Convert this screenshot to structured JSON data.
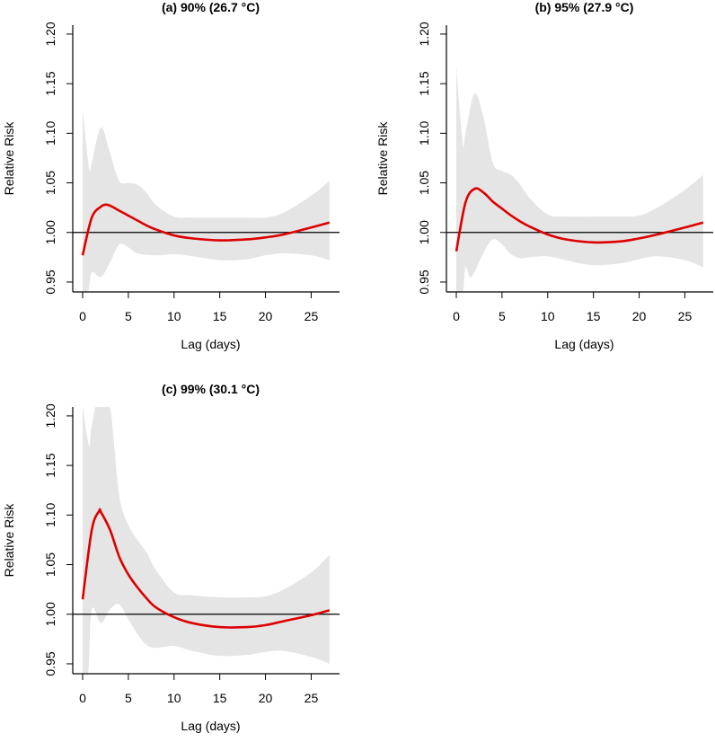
{
  "chart_data": [
    {
      "type": "line",
      "title": "(a) 90% (26.7 °C)",
      "xlabel": "Lag (days)",
      "ylabel": "Relative Risk",
      "xlim": [
        -1.08,
        28.1
      ],
      "ylim": [
        0.94,
        1.209
      ],
      "xticks": [
        "0",
        "5",
        "10",
        "15",
        "20",
        "25"
      ],
      "yticks": [
        "0.95",
        "1.00",
        "1.05",
        "1.10",
        "1.15",
        "1.20"
      ],
      "reference_line": 1.0,
      "colors": {
        "estimate": "#dd0000",
        "ci": "#e5e5e5",
        "reference": "#000000"
      },
      "series": [
        {
          "name": "estimate",
          "x": [
            0,
            1,
            2,
            2.5,
            3,
            4,
            5,
            6,
            7,
            8,
            10,
            12,
            15,
            18,
            20,
            22,
            25,
            27
          ],
          "y": [
            0.977,
            1.015,
            1.026,
            1.028,
            1.027,
            1.022,
            1.017,
            1.012,
            1.007,
            1.003,
            0.997,
            0.994,
            0.992,
            0.993,
            0.995,
            0.998,
            1.005,
            1.01
          ]
        },
        {
          "name": "upper_ci",
          "x": [
            0,
            0.7,
            1,
            2,
            3,
            4,
            5,
            6,
            7,
            8,
            10,
            12,
            15,
            18,
            20,
            22,
            25,
            27
          ],
          "y": [
            1.125,
            1.065,
            1.07,
            1.106,
            1.08,
            1.052,
            1.05,
            1.048,
            1.04,
            1.028,
            1.016,
            1.015,
            1.015,
            1.015,
            1.015,
            1.02,
            1.037,
            1.052
          ]
        },
        {
          "name": "lower_ci",
          "x": [
            0,
            0.6,
            1,
            2,
            3,
            4,
            5,
            6,
            8,
            10,
            12,
            15,
            18,
            20,
            22,
            25,
            27
          ],
          "y": [
            0.94,
            0.94,
            0.96,
            0.955,
            0.97,
            0.988,
            0.985,
            0.979,
            0.977,
            0.978,
            0.976,
            0.972,
            0.973,
            0.977,
            0.979,
            0.977,
            0.972
          ]
        }
      ]
    },
    {
      "type": "line",
      "title": "(b)  95% (27.9 °C)",
      "xlabel": "Lag (days)",
      "ylabel": "Relative Risk",
      "xlim": [
        -1.08,
        28.1
      ],
      "ylim": [
        0.94,
        1.209
      ],
      "xticks": [
        "0",
        "5",
        "10",
        "15",
        "20",
        "25"
      ],
      "yticks": [
        "0.95",
        "1.00",
        "1.05",
        "1.10",
        "1.15",
        "1.20"
      ],
      "reference_line": 1.0,
      "colors": {
        "estimate": "#dd0000",
        "ci": "#e5e5e5",
        "reference": "#000000"
      },
      "series": [
        {
          "name": "estimate",
          "x": [
            0,
            1,
            2,
            3,
            4,
            5,
            6,
            7,
            8,
            10,
            12,
            15,
            18,
            20,
            22,
            25,
            27
          ],
          "y": [
            0.981,
            1.03,
            1.044,
            1.04,
            1.031,
            1.024,
            1.017,
            1.011,
            1.006,
            0.998,
            0.993,
            0.99,
            0.991,
            0.994,
            0.998,
            1.005,
            1.01
          ]
        },
        {
          "name": "upper_ci",
          "x": [
            0,
            0.7,
            1,
            2,
            3,
            4,
            5,
            6,
            7,
            8,
            10,
            12,
            15,
            18,
            20,
            22,
            25,
            27
          ],
          "y": [
            1.168,
            1.09,
            1.1,
            1.14,
            1.115,
            1.07,
            1.062,
            1.058,
            1.048,
            1.035,
            1.018,
            1.016,
            1.016,
            1.016,
            1.017,
            1.025,
            1.043,
            1.058
          ]
        },
        {
          "name": "lower_ci",
          "x": [
            0,
            0.7,
            1,
            1.5,
            2,
            3,
            4,
            5,
            6,
            7,
            8,
            10,
            12,
            15,
            18,
            20,
            22,
            25,
            27
          ],
          "y": [
            0.94,
            0.94,
            0.965,
            0.955,
            0.96,
            0.98,
            0.993,
            0.988,
            0.978,
            0.974,
            0.975,
            0.976,
            0.972,
            0.967,
            0.969,
            0.973,
            0.976,
            0.972,
            0.965
          ]
        }
      ]
    },
    {
      "type": "line",
      "title": "(c) 99% (30.1 °C)",
      "xlabel": "Lag (days)",
      "ylabel": "Relative Risk",
      "xlim": [
        -1.08,
        28.1
      ],
      "ylim": [
        0.94,
        1.209
      ],
      "xticks": [
        "0",
        "5",
        "10",
        "15",
        "20",
        "25"
      ],
      "yticks": [
        "0.95",
        "1.00",
        "1.05",
        "1.10",
        "1.15",
        "1.20"
      ],
      "reference_line": 1.0,
      "colors": {
        "estimate": "#dd0000",
        "ci": "#e5e5e5",
        "reference": "#000000"
      },
      "series": [
        {
          "name": "estimate",
          "x": [
            0,
            1,
            1.8,
            2,
            3,
            4,
            5,
            6,
            7,
            8,
            10,
            12,
            15,
            18,
            20,
            22,
            25,
            27
          ],
          "y": [
            1.015,
            1.085,
            1.104,
            1.103,
            1.085,
            1.058,
            1.04,
            1.027,
            1.016,
            1.007,
            0.997,
            0.991,
            0.987,
            0.987,
            0.989,
            0.993,
            0.999,
            1.004
          ]
        },
        {
          "name": "upper_ci",
          "x": [
            0,
            0.7,
            1,
            2,
            3,
            4,
            5,
            6,
            7,
            8,
            10,
            12,
            15,
            18,
            20,
            22,
            25,
            27
          ],
          "y": [
            1.21,
            1.17,
            1.19,
            1.23,
            1.21,
            1.12,
            1.09,
            1.075,
            1.062,
            1.045,
            1.022,
            1.019,
            1.017,
            1.017,
            1.018,
            1.025,
            1.042,
            1.06
          ]
        },
        {
          "name": "lower_ci",
          "x": [
            0,
            0.6,
            1,
            2,
            3,
            4,
            5,
            6,
            7,
            8,
            10,
            12,
            15,
            18,
            20,
            22,
            25,
            27
          ],
          "y": [
            0.94,
            0.94,
            1.005,
            0.991,
            1.005,
            1.01,
            0.995,
            0.98,
            0.969,
            0.966,
            0.968,
            0.963,
            0.958,
            0.959,
            0.962,
            0.963,
            0.957,
            0.95
          ]
        }
      ]
    }
  ]
}
